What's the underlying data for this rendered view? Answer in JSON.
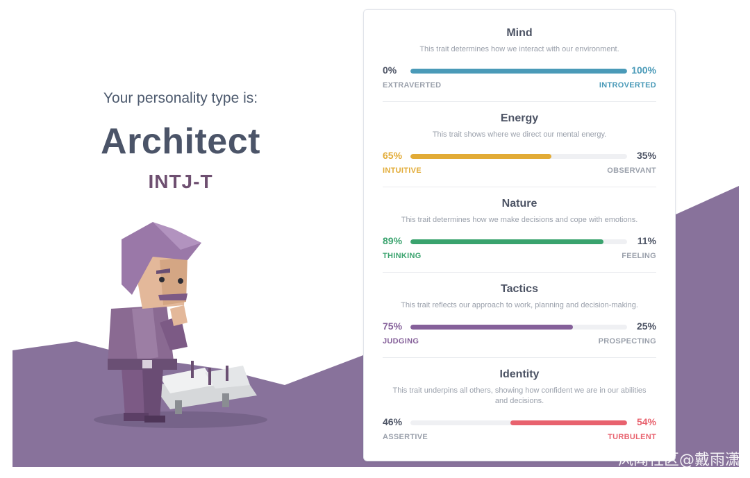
{
  "colors": {
    "background_purple": "#88729b",
    "neutral_text": "#4c5364",
    "muted_label": "#9aa0ab",
    "mind": "#4a9ab8",
    "energy": "#e2ab36",
    "nature": "#3aa36e",
    "tactics": "#85609a",
    "identity": "#e8626e"
  },
  "result": {
    "subtitle": "Your personality type is:",
    "type_name": "Architect",
    "type_code": "INTJ-T"
  },
  "traits": [
    {
      "name": "Mind",
      "description": "This trait determines how we interact with our environment.",
      "left_pct": "0%",
      "right_pct": "100%",
      "left_label": "EXTRAVERTED",
      "right_label": "INTROVERTED",
      "dominant": "right",
      "value": 1.0,
      "color": "#4a9ab8"
    },
    {
      "name": "Energy",
      "description": "This trait shows where we direct our mental energy.",
      "left_pct": "65%",
      "right_pct": "35%",
      "left_label": "INTUITIVE",
      "right_label": "OBSERVANT",
      "dominant": "left",
      "value": 0.65,
      "color": "#e2ab36"
    },
    {
      "name": "Nature",
      "description": "This trait determines how we make decisions and cope with emotions.",
      "left_pct": "89%",
      "right_pct": "11%",
      "left_label": "THINKING",
      "right_label": "FEELING",
      "dominant": "left",
      "value": 0.89,
      "color": "#3aa36e"
    },
    {
      "name": "Tactics",
      "description": "This trait reflects our approach to work, planning and decision-making.",
      "left_pct": "75%",
      "right_pct": "25%",
      "left_label": "JUDGING",
      "right_label": "PROSPECTING",
      "dominant": "left",
      "value": 0.75,
      "color": "#85609a"
    },
    {
      "name": "Identity",
      "description": "This trait underpins all others, showing how confident we are in our abilities and decisions.",
      "left_pct": "46%",
      "right_pct": "54%",
      "left_label": "ASSERTIVE",
      "right_label": "TURBULENT",
      "dominant": "right",
      "value": 0.54,
      "color": "#e8626e"
    }
  ],
  "watermark": "风闻社区@戴雨潇"
}
